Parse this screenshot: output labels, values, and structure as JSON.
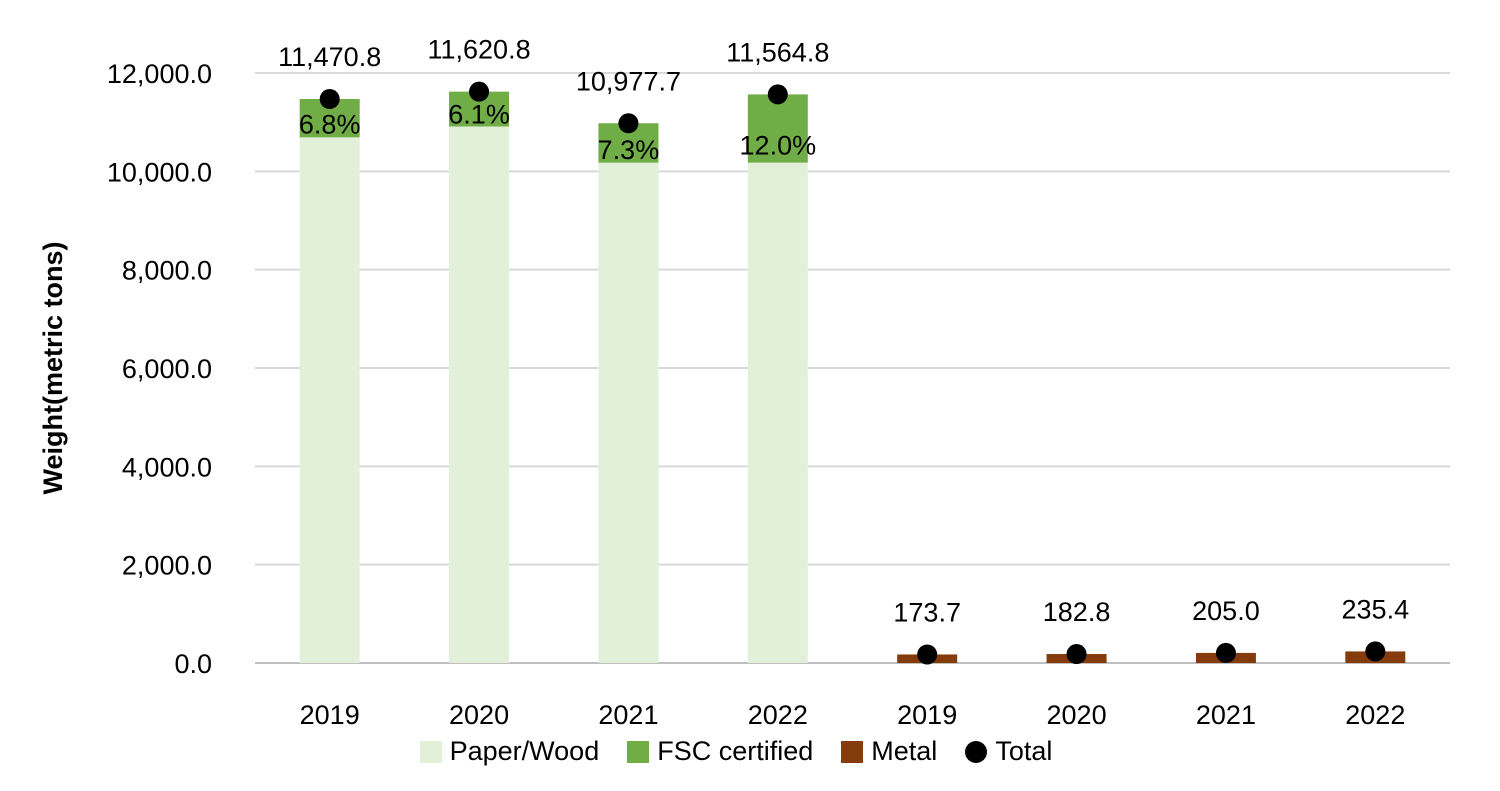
{
  "chart_data": {
    "type": "bar",
    "title": "",
    "xlabel": "",
    "ylabel": "Weight(metric tons)",
    "ylim": [
      0,
      12000
    ],
    "yticks": [
      0,
      2000,
      4000,
      6000,
      8000,
      10000,
      12000
    ],
    "ytick_labels": [
      "0.0",
      "2,000.0",
      "4,000.0",
      "6,000.0",
      "8,000.0",
      "10,000.0",
      "12,000.0"
    ],
    "categories": [
      "2019",
      "2020",
      "2021",
      "2022",
      "2019",
      "2020",
      "2021",
      "2022"
    ],
    "series": [
      {
        "name": "Paper/Wood",
        "color": "#e2efd9",
        "values": [
          10690.8,
          10912.0,
          10176.3,
          10177.0,
          0,
          0,
          0,
          0
        ]
      },
      {
        "name": "FSC certified",
        "color": "#70ad47",
        "values": [
          780.0,
          708.8,
          801.4,
          1387.8,
          0,
          0,
          0,
          0
        ],
        "labels": [
          "6.8%",
          "6.1%",
          "7.3%",
          "12.0%",
          "",
          "",
          "",
          ""
        ]
      },
      {
        "name": "Metal",
        "color": "#843c0c",
        "values": [
          0,
          0,
          0,
          0,
          173.7,
          182.8,
          205.0,
          235.4
        ]
      },
      {
        "name": "Total",
        "color": "#000000",
        "type": "scatter",
        "values": [
          11470.8,
          11620.8,
          10977.7,
          11564.8,
          173.7,
          182.8,
          205.0,
          235.4
        ],
        "labels": [
          "11,470.8",
          "11,620.8",
          "10,977.7",
          "11,564.8",
          "173.7",
          "182.8",
          "205.0",
          "235.4"
        ]
      }
    ],
    "grid": true,
    "legend_position": "bottom"
  },
  "legend": [
    {
      "label": "Paper/Wood",
      "color": "#e2efd9",
      "marker": "square"
    },
    {
      "label": "FSC certified",
      "color": "#70ad47",
      "marker": "square"
    },
    {
      "label": "Metal",
      "color": "#843c0c",
      "marker": "square"
    },
    {
      "label": "Total",
      "color": "#000000",
      "marker": "circle"
    }
  ]
}
